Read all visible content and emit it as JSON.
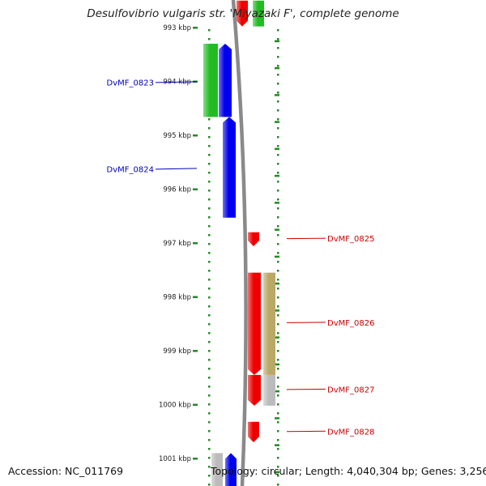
{
  "title": "Desulfovibrio vulgaris str. 'Miyazaki F', complete genome",
  "footer": {
    "accession": "Accession: NC_011769",
    "summary": "Topology: circular; Length: 4,040,304 bp; Genes: 3,256"
  },
  "scale": {
    "unit": "kbp",
    "ticks": [
      {
        "kbp": 993,
        "label": "993 kbp"
      },
      {
        "kbp": 994,
        "label": "994 kbp"
      },
      {
        "kbp": 995,
        "label": "995 kbp"
      },
      {
        "kbp": 996,
        "label": "996 kbp"
      },
      {
        "kbp": 997,
        "label": "997 kbp"
      },
      {
        "kbp": 998,
        "label": "998 kbp"
      },
      {
        "kbp": 999,
        "label": "999 kbp"
      },
      {
        "kbp": 1000,
        "label": "1000 kbp"
      },
      {
        "kbp": 1001,
        "label": "1001 kbp"
      }
    ]
  },
  "colors": {
    "blue": "#0000ee",
    "green": "#22bb22",
    "red": "#ee0000",
    "olive": "#b9a866",
    "gray": "#bbbbbb",
    "scale": "#228b22",
    "label_blue": "#0000bb",
    "label_red": "#cc0000"
  },
  "labels": [
    {
      "name": "DvMF_0823",
      "side": "left",
      "kbp": 994.02
    },
    {
      "name": "DvMF_0824",
      "side": "left",
      "kbp": 995.63
    },
    {
      "name": "DvMF_0825",
      "side": "right",
      "kbp": 996.92
    },
    {
      "name": "DvMF_0826",
      "side": "right",
      "kbp": 998.48
    },
    {
      "name": "DvMF_0827",
      "side": "right",
      "kbp": 999.72
    },
    {
      "name": "DvMF_0828",
      "side": "right",
      "kbp": 1000.5
    }
  ]
}
